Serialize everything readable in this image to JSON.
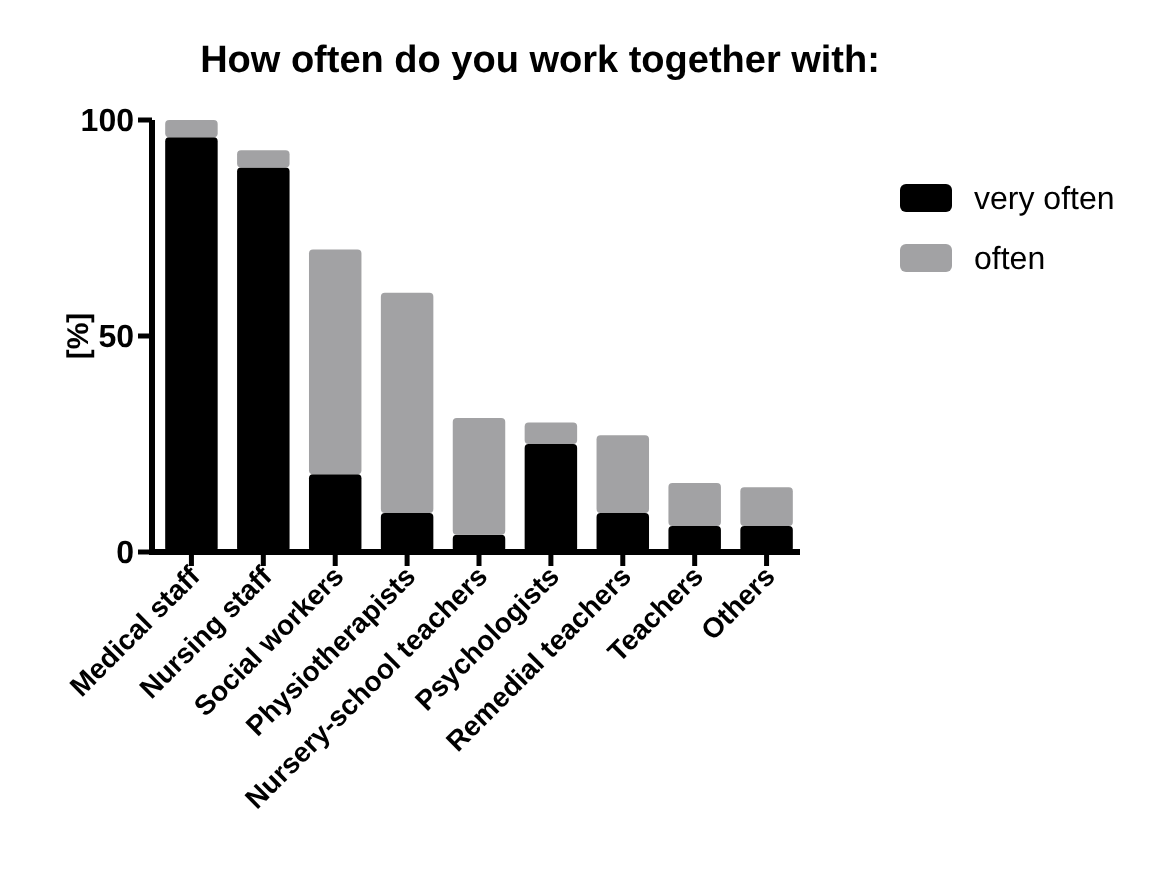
{
  "chart_data": {
    "type": "bar",
    "title": "How often do you work together with:",
    "ylabel": "[%]",
    "categories": [
      "Medical staff",
      "Nursing staff",
      "Social workers",
      "Physiotherapists",
      "Nursery-school teachers",
      "Psychologists",
      "Remedial teachers",
      "Teachers",
      "Others"
    ],
    "series": [
      {
        "name": "very often",
        "color": "#000000",
        "values": [
          96,
          89,
          18,
          9,
          4,
          25,
          9,
          6,
          6
        ]
      },
      {
        "name": "often",
        "color": "#a2a2a4",
        "values": [
          4,
          4,
          52,
          51,
          27,
          5,
          18,
          10,
          9
        ]
      }
    ],
    "stacked": true,
    "ylim": [
      0,
      100
    ],
    "yticks": [
      0,
      50,
      100
    ],
    "grid": false,
    "legend": "right"
  }
}
